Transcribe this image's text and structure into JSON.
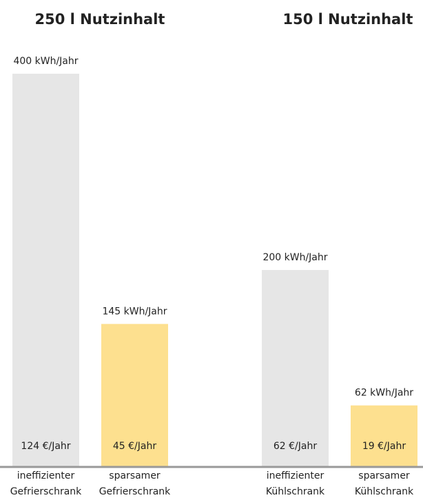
{
  "chart_data": {
    "type": "bar",
    "groups": [
      "250 l Nutzinhalt",
      "150 l Nutzinhalt"
    ],
    "categories": [
      "ineffizienter Gefrierschrank",
      "sparsamer Gefrierschrank",
      "ineffizienter Kühlschrank",
      "sparsamer Kühlschrank"
    ],
    "values": [
      400,
      145,
      200,
      62
    ],
    "value_labels": [
      "400 kWh/Jahr",
      "145 kWh/Jahr",
      "200 kWh/Jahr",
      "62 kWh/Jahr"
    ],
    "cost_labels": [
      "124 €/Jahr",
      "45 €/Jahr",
      "62 €/Jahr",
      "19 €/Jahr"
    ],
    "colors": [
      "#e6e6e6",
      "#fde08f",
      "#e6e6e6",
      "#fde08f"
    ],
    "baseline_color": "#999999"
  }
}
